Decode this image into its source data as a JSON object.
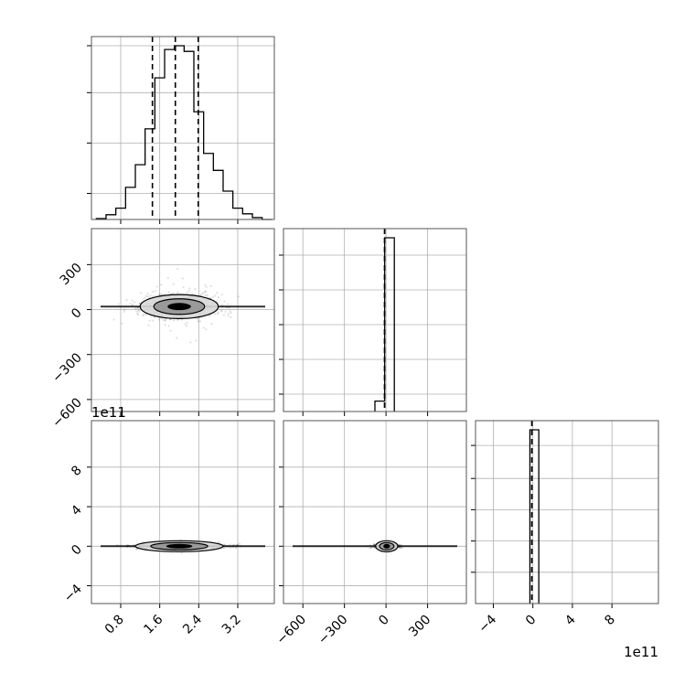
{
  "chart_data": {
    "type": "corner",
    "panels": [
      {
        "id": "hist-0",
        "type": "histogram",
        "row": 0,
        "col": 0,
        "xlim": [
          0.2,
          3.95
        ],
        "bin_edges": [
          0.3,
          0.5,
          0.7,
          0.9,
          1.1,
          1.3,
          1.5,
          1.7,
          1.9,
          2.1,
          2.3,
          2.5,
          2.7,
          2.9,
          3.1,
          3.3,
          3.5,
          3.7,
          3.9
        ],
        "counts": [
          0.5,
          2.5,
          6,
          17,
          29,
          48,
          75,
          90,
          92,
          89,
          57,
          35,
          26,
          15,
          6,
          3,
          1,
          0
        ],
        "quantile_lines": [
          1.45,
          1.92,
          2.39
        ],
        "x_ticks": [
          0.8,
          1.6,
          2.4,
          3.2
        ],
        "y_tick_fracs": [
          0.15,
          0.44,
          0.73,
          1.0
        ]
      },
      {
        "id": "scatter-1-0",
        "type": "scatter-contour",
        "row": 1,
        "col": 0,
        "xlim": [
          0.2,
          3.95
        ],
        "ylim": [
          -680,
          540
        ],
        "center": [
          2.0,
          20
        ],
        "spread": [
          0.4,
          40
        ],
        "y_ticks": [
          -600,
          -300,
          0,
          300
        ],
        "y_tick_labels": [
          "−600",
          "−300",
          "0",
          "300"
        ]
      },
      {
        "id": "hist-1",
        "type": "histogram",
        "row": 1,
        "col": 1,
        "xlim": [
          -740,
          580
        ],
        "bin_edges": [
          -80,
          -10,
          60
        ],
        "counts": [
          6,
          100
        ],
        "quantile_lines": [
          -10,
          -10
        ],
        "x_ticks": [
          -600,
          -300,
          0,
          300
        ],
        "y_tick_fracs": [
          0.1,
          0.3,
          0.5,
          0.7,
          0.9
        ]
      },
      {
        "id": "scatter-2-0",
        "type": "scatter-contour",
        "row": 2,
        "col": 0,
        "xlim": [
          0.2,
          3.95
        ],
        "ylim": [
          -5.8,
          12.7
        ],
        "center": [
          2.0,
          0.0
        ],
        "spread": [
          0.45,
          0.1
        ],
        "y_ticks": [
          -4,
          0,
          4,
          8
        ],
        "y_tick_labels": [
          "−4",
          "0",
          "4",
          "8"
        ],
        "x_ticks": [
          0.8,
          1.6,
          2.4,
          3.2
        ],
        "x_tick_labels": [
          "0.8",
          "1.6",
          "2.4",
          "3.2"
        ],
        "y_exponent": "1e11"
      },
      {
        "id": "scatter-2-1",
        "type": "scatter-contour",
        "row": 2,
        "col": 1,
        "xlim": [
          -740,
          580
        ],
        "ylim": [
          -5.8,
          12.7
        ],
        "center": [
          5,
          0.0
        ],
        "spread": [
          40,
          0.1
        ],
        "x_ticks": [
          -600,
          -300,
          0,
          300
        ],
        "x_tick_labels": [
          "−600",
          "−300",
          "0",
          "300"
        ]
      },
      {
        "id": "hist-2",
        "type": "histogram",
        "row": 2,
        "col": 2,
        "xlim": [
          -5.8,
          12.7
        ],
        "bin_edges": [
          -0.3,
          0.6
        ],
        "counts": [
          100
        ],
        "quantile_lines": [
          -0.1,
          -0.1
        ],
        "x_ticks": [
          -4,
          0,
          4,
          8
        ],
        "x_tick_labels": [
          "−4",
          "0",
          "4",
          "8"
        ],
        "y_tick_fracs": [
          0.18,
          0.36,
          0.54,
          0.72,
          0.91
        ],
        "x_exponent": "1e11"
      }
    ]
  }
}
